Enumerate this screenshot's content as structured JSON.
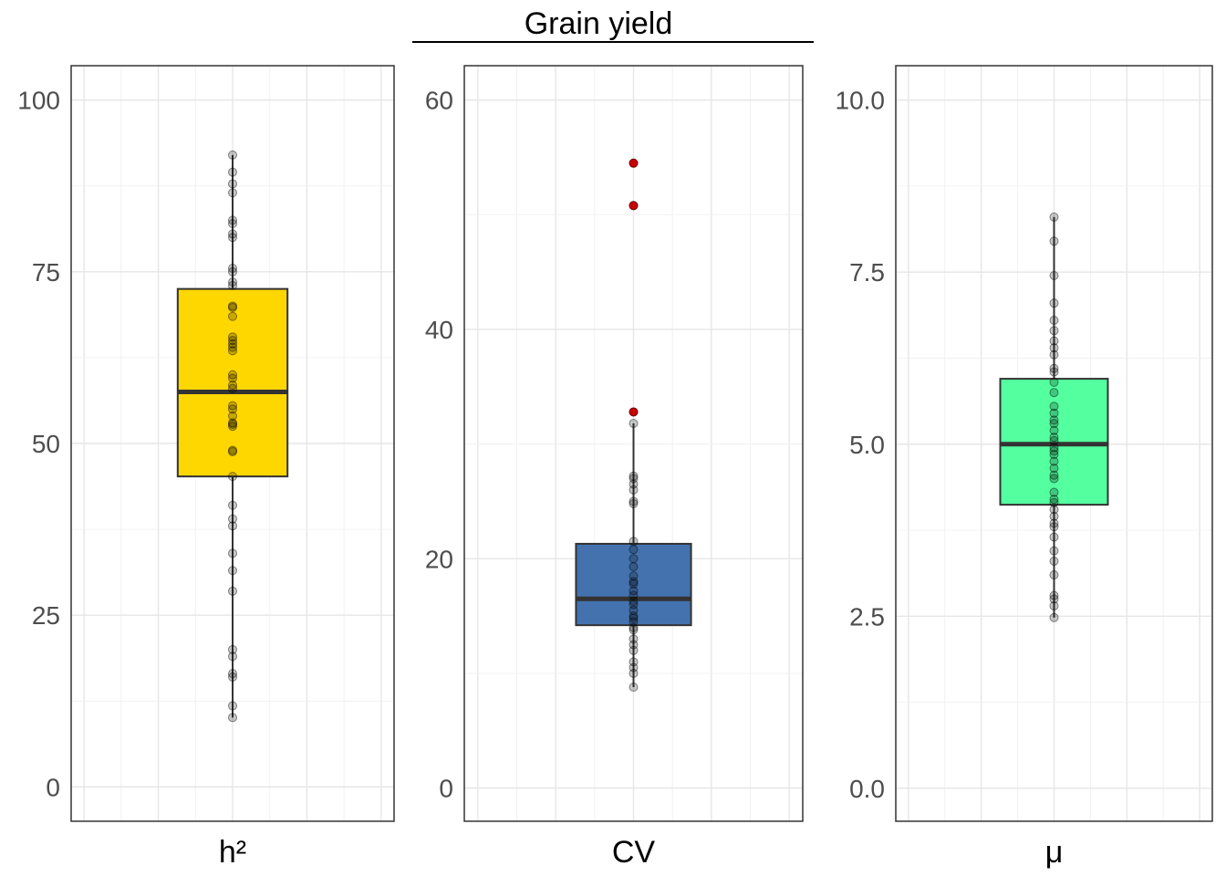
{
  "chart_data": {
    "type": "boxplot",
    "title": "Grain yield",
    "grid": true,
    "panels": [
      {
        "label": "h²",
        "fill": "#FFD700",
        "ylim": [
          -5,
          105
        ],
        "yticks": [
          0,
          25,
          50,
          75,
          100
        ],
        "ytick_labels": [
          "0",
          "25",
          "50",
          "75",
          "100"
        ],
        "box": {
          "q1": 45.2,
          "median": 57.5,
          "q3": 72.5,
          "whisker_low": 10.1,
          "whisker_high": 92.0
        },
        "points": [
          92.0,
          89.5,
          87.8,
          86.5,
          82.5,
          82.0,
          80.5,
          80.0,
          75.5,
          75.0,
          73.5,
          73.0,
          70.0,
          69.8,
          68.5,
          65.5,
          65.0,
          64.5,
          64.0,
          63.5,
          60.0,
          59.5,
          58.5,
          58.0,
          55.5,
          55.0,
          54.0,
          53.0,
          52.8,
          52.5,
          49.0,
          48.8,
          45.2,
          41.0,
          39.0,
          38.0,
          34.0,
          31.5,
          28.5,
          20.0,
          19.0,
          16.5,
          16.0,
          11.8,
          10.1
        ],
        "outliers": []
      },
      {
        "label": "CV",
        "fill": "#4472AE",
        "ylim": [
          -2.9,
          63
        ],
        "yticks": [
          0,
          20,
          40,
          60
        ],
        "ytick_labels": [
          "0",
          "20",
          "40",
          "60"
        ],
        "box": {
          "q1": 14.2,
          "median": 16.5,
          "q3": 21.3,
          "whisker_low": 8.8,
          "whisker_high": 31.8
        },
        "points": [
          31.8,
          27.2,
          27.0,
          26.5,
          26.0,
          25.0,
          24.8,
          21.5,
          20.8,
          20.0,
          19.3,
          18.5,
          18.0,
          17.8,
          17.2,
          16.8,
          16.3,
          16.0,
          15.5,
          15.0,
          14.8,
          14.5,
          14.0,
          13.8,
          13.0,
          12.5,
          12.0,
          11.0,
          10.5,
          10.0,
          8.8
        ],
        "outliers": [
          54.5,
          50.8,
          32.8
        ]
      },
      {
        "label": "μ",
        "fill": "#54FF9F",
        "ylim": [
          -0.48,
          10.5
        ],
        "yticks": [
          0,
          2.5,
          5,
          7.5,
          10
        ],
        "ytick_labels": [
          "0.0",
          "2.5",
          "5.0",
          "7.5",
          "10.0"
        ],
        "box": {
          "q1": 4.12,
          "median": 5.0,
          "q3": 5.95,
          "whisker_low": 2.48,
          "whisker_high": 8.3
        },
        "points": [
          8.3,
          7.95,
          7.45,
          7.05,
          6.8,
          6.65,
          6.5,
          6.4,
          6.3,
          6.1,
          6.05,
          5.9,
          5.75,
          5.55,
          5.45,
          5.35,
          5.3,
          5.2,
          5.1,
          5.05,
          4.95,
          4.9,
          4.85,
          4.75,
          4.65,
          4.55,
          4.5,
          4.3,
          4.2,
          4.15,
          4.05,
          3.95,
          3.85,
          3.8,
          3.65,
          3.45,
          3.3,
          3.1,
          2.8,
          2.75,
          2.65,
          2.48
        ],
        "outliers": []
      }
    ]
  }
}
